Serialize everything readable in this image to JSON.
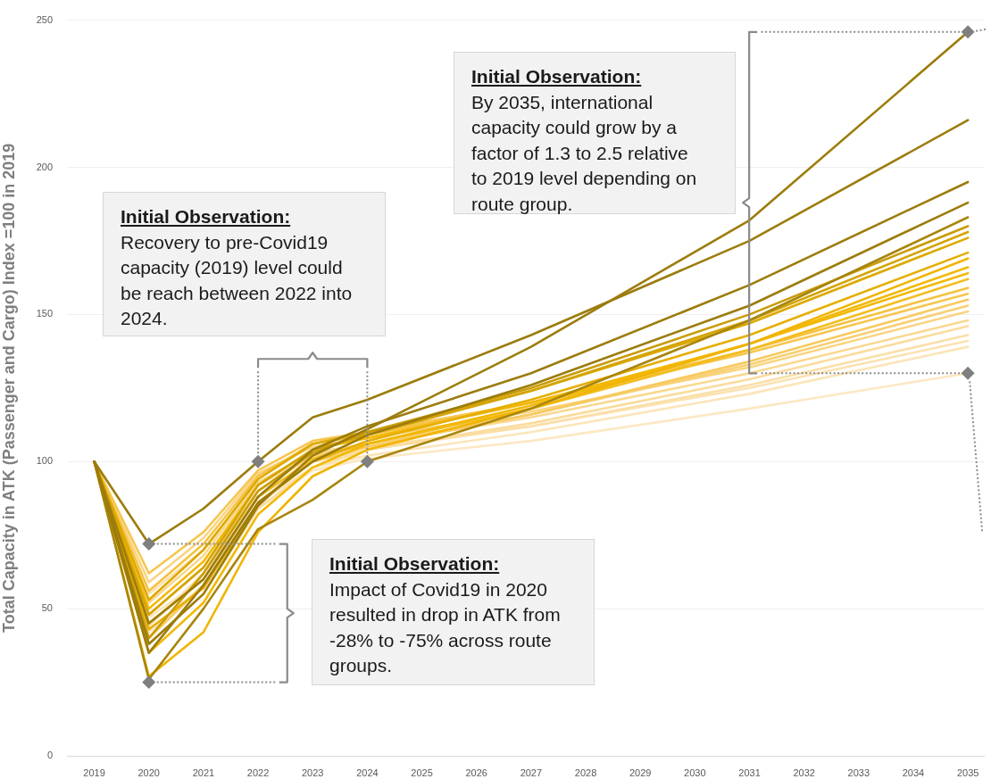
{
  "chart_data": {
    "type": "line",
    "ylabel": "Total Capacity in ATK (Passenger and Cargo) Index =100 in 2019",
    "x": [
      2019,
      2020,
      2021,
      2022,
      2023,
      2024,
      2027,
      2031,
      2035
    ],
    "xlim": [
      2018.5,
      2035.3
    ],
    "xticks": [
      2019,
      2020,
      2021,
      2022,
      2023,
      2024,
      2025,
      2026,
      2027,
      2028,
      2029,
      2030,
      2031,
      2032,
      2033,
      2034,
      2035
    ],
    "ylim": [
      0,
      250
    ],
    "yticks": [
      0,
      50,
      100,
      150,
      200,
      250
    ],
    "grid": "y",
    "marker": "none",
    "series": [
      {
        "type": "scatter",
        "color": "#7f7f7f",
        "marker": "diamond",
        "x": [
          2020,
          2020,
          2022,
          2024,
          2035,
          2035
        ],
        "values": [
          72,
          25,
          100,
          100,
          246,
          130
        ]
      },
      {
        "color": "#9c7c0c",
        "values": [
          100,
          38,
          55,
          85,
          102,
          111,
          139,
          182,
          246
        ]
      },
      {
        "color": "#9c7c0c",
        "values": [
          100,
          72,
          84,
          100,
          115,
          121,
          143,
          175,
          216
        ]
      },
      {
        "color": "#9c7c0c",
        "values": [
          100,
          45,
          60,
          88,
          104,
          112,
          130,
          160,
          195
        ]
      },
      {
        "color": "#9c7c0c",
        "values": [
          100,
          35,
          58,
          86,
          100,
          109,
          126,
          153,
          188
        ]
      },
      {
        "color": "#a8850c",
        "values": [
          100,
          26,
          50,
          77,
          87,
          100,
          118,
          148,
          183
        ]
      },
      {
        "color": "#c99c08",
        "values": [
          100,
          40,
          62,
          90,
          103,
          110,
          125,
          150,
          180
        ]
      },
      {
        "color": "#d4a404",
        "values": [
          100,
          48,
          64,
          92,
          104,
          109,
          124,
          148,
          178
        ]
      },
      {
        "color": "#dca900",
        "values": [
          100,
          53,
          70,
          94,
          106,
          110,
          124,
          147,
          176
        ]
      },
      {
        "color": "#e6ae00",
        "values": [
          100,
          43,
          57,
          86,
          100,
          107,
          121,
          143,
          171
        ]
      },
      {
        "color": "#f0b400",
        "values": [
          100,
          27,
          42,
          76,
          95,
          104,
          118,
          140,
          169
        ]
      },
      {
        "color": "#f2b806",
        "values": [
          100,
          35,
          52,
          82,
          98,
          106,
          119,
          140,
          166
        ]
      },
      {
        "color": "#f2b806",
        "values": [
          100,
          50,
          66,
          92,
          104,
          108,
          120,
          140,
          164
        ]
      },
      {
        "color": "#f3bd20",
        "values": [
          100,
          45,
          60,
          88,
          101,
          106,
          118,
          138,
          162
        ]
      },
      {
        "color": "#f5c240",
        "values": [
          100,
          56,
          72,
          95,
          106,
          109,
          120,
          138,
          159
        ]
      },
      {
        "color": "#f6c650",
        "values": [
          100,
          62,
          76,
          97,
          107,
          110,
          120,
          137,
          157
        ]
      },
      {
        "color": "#f7ca60",
        "values": [
          100,
          40,
          58,
          86,
          100,
          105,
          116,
          134,
          155
        ]
      },
      {
        "color": "#f8cf72",
        "values": [
          100,
          48,
          64,
          90,
          102,
          106,
          116,
          133,
          153
        ]
      },
      {
        "color": "#f9d482",
        "values": [
          100,
          59,
          74,
          96,
          105,
          108,
          117,
          132,
          151
        ]
      },
      {
        "color": "#f9d890",
        "values": [
          100,
          52,
          68,
          93,
          103,
          106,
          115,
          130,
          148
        ]
      },
      {
        "color": "#fadc9e",
        "values": [
          100,
          38,
          55,
          84,
          98,
          104,
          113,
          128,
          146
        ]
      },
      {
        "color": "#fadfa8",
        "values": [
          100,
          44,
          62,
          88,
          100,
          104,
          112,
          126,
          143
        ]
      },
      {
        "color": "#fbe2b2",
        "values": [
          100,
          55,
          70,
          92,
          102,
          105,
          112,
          125,
          141
        ]
      },
      {
        "color": "#fbe5ba",
        "values": [
          100,
          47,
          60,
          86,
          98,
          102,
          110,
          123,
          139
        ]
      },
      {
        "color": "#fce8c4",
        "values": [
          100,
          42,
          58,
          84,
          97,
          101,
          107,
          118,
          130
        ]
      }
    ],
    "annotations": [
      "Initial Observation:\nBy 2035, international capacity could grow by a factor of 1.3 to 2.5 relative to 2019 level depending on route group.",
      "Initial Observation:\nRecovery to pre-Covid19 capacity (2019) level could be reach between 2022 into 2024.",
      "Initial Observation:\nImpact of Covid19 in 2020 resulted in drop in ATK from -28% to -75% across route groups."
    ]
  }
}
